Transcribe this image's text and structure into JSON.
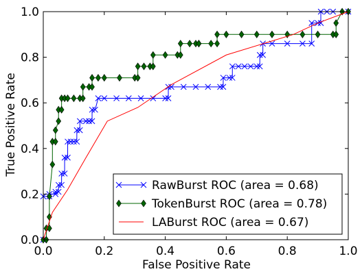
{
  "chart_data": {
    "type": "line",
    "title": "",
    "xlabel": "False Positive Rate",
    "ylabel": "True Positive Rate",
    "xlim": [
      0.0,
      1.0
    ],
    "ylim": [
      0.0,
      1.0
    ],
    "xticks": [
      "0.0",
      "0.2",
      "0.4",
      "0.6",
      "0.8",
      "1.0"
    ],
    "yticks": [
      "0.0",
      "0.2",
      "0.4",
      "0.6",
      "0.8",
      "1.0"
    ],
    "grid": false,
    "legend_position": "lower-right",
    "series": [
      {
        "name": "RawBurst ROC (area = 0.68)",
        "color": "#0000ff",
        "marker": "x",
        "x": [
          0.0,
          0.0,
          0.02,
          0.02,
          0.04,
          0.04,
          0.05,
          0.05,
          0.06,
          0.06,
          0.07,
          0.07,
          0.08,
          0.08,
          0.09,
          0.1,
          0.11,
          0.11,
          0.12,
          0.12,
          0.14,
          0.15,
          0.16,
          0.16,
          0.17,
          0.18,
          0.2,
          0.24,
          0.28,
          0.32,
          0.36,
          0.4,
          0.41,
          0.41,
          0.42,
          0.46,
          0.5,
          0.54,
          0.58,
          0.59,
          0.59,
          0.61,
          0.62,
          0.62,
          0.64,
          0.66,
          0.68,
          0.7,
          0.71,
          0.71,
          0.72,
          0.72,
          0.75,
          0.8,
          0.85,
          0.88,
          0.88,
          0.9,
          0.91,
          0.91,
          0.93,
          0.95,
          1.0
        ],
        "y": [
          0.0,
          0.19,
          0.19,
          0.2,
          0.2,
          0.21,
          0.21,
          0.24,
          0.24,
          0.29,
          0.29,
          0.36,
          0.36,
          0.43,
          0.43,
          0.43,
          0.43,
          0.48,
          0.48,
          0.52,
          0.52,
          0.52,
          0.52,
          0.57,
          0.57,
          0.62,
          0.62,
          0.62,
          0.62,
          0.62,
          0.62,
          0.62,
          0.62,
          0.67,
          0.67,
          0.67,
          0.67,
          0.67,
          0.67,
          0.67,
          0.71,
          0.71,
          0.71,
          0.76,
          0.76,
          0.76,
          0.76,
          0.76,
          0.76,
          0.81,
          0.81,
          0.86,
          0.86,
          0.86,
          0.86,
          0.86,
          0.95,
          0.95,
          0.95,
          1.0,
          1.0,
          1.0,
          1.0
        ]
      },
      {
        "name": "TokenBurst ROC (area = 0.78)",
        "color": "#006400",
        "marker": "diamond",
        "x": [
          0.0,
          0.01,
          0.01,
          0.02,
          0.02,
          0.02,
          0.03,
          0.03,
          0.04,
          0.04,
          0.05,
          0.05,
          0.06,
          0.06,
          0.07,
          0.08,
          0.1,
          0.12,
          0.13,
          0.13,
          0.15,
          0.16,
          0.16,
          0.18,
          0.2,
          0.25,
          0.3,
          0.31,
          0.31,
          0.33,
          0.35,
          0.36,
          0.36,
          0.4,
          0.44,
          0.45,
          0.45,
          0.48,
          0.5,
          0.51,
          0.51,
          0.55,
          0.57,
          0.57,
          0.6,
          0.65,
          0.7,
          0.75,
          0.8,
          0.85,
          0.9,
          0.95,
          0.96,
          0.96,
          0.98,
          1.0
        ],
        "y": [
          0.0,
          0.0,
          0.05,
          0.05,
          0.1,
          0.19,
          0.33,
          0.43,
          0.43,
          0.48,
          0.52,
          0.57,
          0.57,
          0.62,
          0.62,
          0.62,
          0.62,
          0.62,
          0.62,
          0.67,
          0.67,
          0.67,
          0.71,
          0.71,
          0.71,
          0.71,
          0.71,
          0.71,
          0.76,
          0.76,
          0.76,
          0.76,
          0.81,
          0.81,
          0.81,
          0.81,
          0.86,
          0.86,
          0.86,
          0.86,
          0.86,
          0.86,
          0.86,
          0.9,
          0.9,
          0.9,
          0.9,
          0.9,
          0.9,
          0.9,
          0.9,
          0.9,
          0.9,
          0.95,
          1.0,
          1.0
        ]
      },
      {
        "name": "LABurst ROC (area = 0.67)",
        "color": "#ff0000",
        "marker": "none",
        "x": [
          0.0,
          0.01,
          0.03,
          0.08,
          0.14,
          0.21,
          0.31,
          0.42,
          0.6,
          0.82,
          0.9,
          1.0
        ],
        "y": [
          0.0,
          0.04,
          0.12,
          0.22,
          0.36,
          0.52,
          0.58,
          0.68,
          0.81,
          0.9,
          0.95,
          1.0
        ]
      }
    ]
  }
}
